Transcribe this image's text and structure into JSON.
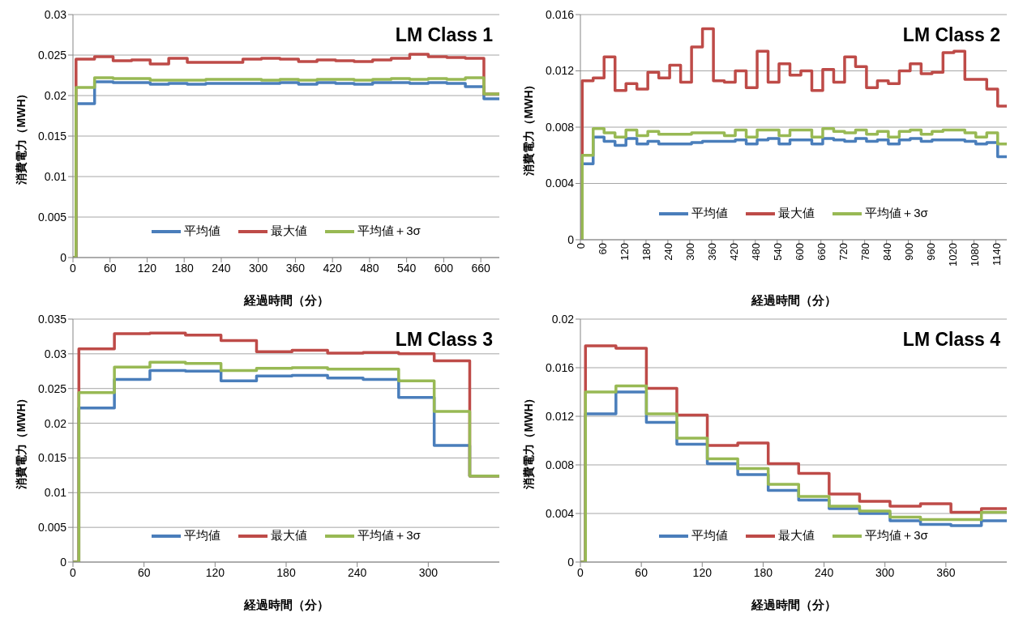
{
  "chart_data": [
    {
      "type": "step",
      "title": "LM Class 1",
      "xlabel": "経過時間（分）",
      "ylabel": "消費電力（MWH）",
      "grid": "y",
      "legend": "bottom",
      "marker": "none",
      "line_style": "solid",
      "x": [
        0,
        5,
        35,
        65,
        95,
        125,
        155,
        185,
        215,
        245,
        275,
        305,
        335,
        365,
        395,
        425,
        455,
        485,
        515,
        545,
        575,
        605,
        635,
        665,
        690
      ],
      "xlim": [
        0,
        690
      ],
      "xticks": [
        0,
        60,
        120,
        180,
        240,
        300,
        360,
        420,
        480,
        540,
        600,
        660
      ],
      "ylim": [
        0,
        0.03
      ],
      "yticks": [
        0,
        0.005,
        0.01,
        0.015,
        0.02,
        0.025,
        0.03
      ],
      "series": [
        {
          "name": "平均値",
          "color": "#4a7ebb",
          "values": [
            0,
            0.019,
            0.0217,
            0.0216,
            0.0216,
            0.0214,
            0.0215,
            0.0214,
            0.0215,
            0.0215,
            0.0215,
            0.0215,
            0.0216,
            0.0214,
            0.0216,
            0.0215,
            0.0214,
            0.0216,
            0.0216,
            0.0215,
            0.0216,
            0.0215,
            0.0211,
            0.0196,
            0.0196
          ]
        },
        {
          "name": "最大値",
          "color": "#be4b48",
          "values": [
            0,
            0.0245,
            0.0248,
            0.0243,
            0.0244,
            0.0239,
            0.0246,
            0.0241,
            0.0241,
            0.0241,
            0.0245,
            0.0246,
            0.0245,
            0.0242,
            0.0244,
            0.0243,
            0.0242,
            0.0244,
            0.0246,
            0.0251,
            0.0248,
            0.0247,
            0.0246,
            0.0202,
            0.0202
          ]
        },
        {
          "name": "平均値＋3σ",
          "color": "#98b954",
          "values": [
            0,
            0.021,
            0.0222,
            0.0221,
            0.0221,
            0.0219,
            0.0219,
            0.0219,
            0.022,
            0.022,
            0.022,
            0.0219,
            0.022,
            0.0219,
            0.022,
            0.022,
            0.0219,
            0.022,
            0.0221,
            0.022,
            0.0221,
            0.022,
            0.0222,
            0.0202,
            0.0202
          ]
        }
      ]
    },
    {
      "type": "step",
      "title": "LM Class 2",
      "xlabel": "経過時間（分）",
      "ylabel": "消費電力（MWH）",
      "grid": "y",
      "legend": "bottom",
      "marker": "none",
      "line_style": "solid",
      "x": [
        0,
        5,
        35,
        65,
        95,
        125,
        155,
        185,
        215,
        245,
        275,
        305,
        335,
        365,
        395,
        425,
        455,
        485,
        515,
        545,
        575,
        605,
        635,
        665,
        695,
        725,
        755,
        785,
        815,
        845,
        875,
        905,
        935,
        965,
        995,
        1025,
        1055,
        1085,
        1115,
        1145,
        1170
      ],
      "xlim": [
        0,
        1170
      ],
      "xticks": [
        0,
        60,
        120,
        180,
        240,
        300,
        360,
        420,
        480,
        540,
        600,
        660,
        720,
        780,
        840,
        900,
        960,
        1020,
        1080,
        1140
      ],
      "ylim": [
        0,
        0.016
      ],
      "yticks": [
        0,
        0.004,
        0.008,
        0.012,
        0.016
      ],
      "series": [
        {
          "name": "平均値",
          "color": "#4a7ebb",
          "values": [
            0,
            0.0054,
            0.0073,
            0.007,
            0.0067,
            0.0072,
            0.0068,
            0.007,
            0.0068,
            0.0068,
            0.0068,
            0.0069,
            0.007,
            0.007,
            0.007,
            0.0071,
            0.0068,
            0.0071,
            0.0072,
            0.0068,
            0.0071,
            0.0071,
            0.0068,
            0.0072,
            0.0071,
            0.007,
            0.0072,
            0.007,
            0.0071,
            0.0068,
            0.0071,
            0.0072,
            0.007,
            0.0071,
            0.0071,
            0.0071,
            0.007,
            0.0068,
            0.0069,
            0.0059,
            0.0059
          ]
        },
        {
          "name": "最大値",
          "color": "#be4b48",
          "values": [
            0,
            0.0113,
            0.0115,
            0.013,
            0.0106,
            0.0111,
            0.0107,
            0.0119,
            0.0115,
            0.0124,
            0.0112,
            0.0137,
            0.015,
            0.0113,
            0.0112,
            0.012,
            0.0108,
            0.0134,
            0.0112,
            0.0125,
            0.0117,
            0.012,
            0.0106,
            0.0121,
            0.0112,
            0.013,
            0.0123,
            0.0108,
            0.0113,
            0.0111,
            0.012,
            0.0125,
            0.0118,
            0.0119,
            0.0133,
            0.0134,
            0.0114,
            0.0114,
            0.0107,
            0.0095,
            0.0095
          ]
        },
        {
          "name": "平均値＋3σ",
          "color": "#98b954",
          "values": [
            0,
            0.006,
            0.0079,
            0.0076,
            0.0073,
            0.0078,
            0.0074,
            0.0077,
            0.0075,
            0.0075,
            0.0075,
            0.0076,
            0.0076,
            0.0076,
            0.0074,
            0.0078,
            0.0073,
            0.0078,
            0.0078,
            0.0074,
            0.0078,
            0.0078,
            0.0073,
            0.0079,
            0.0077,
            0.0076,
            0.0078,
            0.0075,
            0.0077,
            0.0073,
            0.0077,
            0.0078,
            0.0075,
            0.0077,
            0.0078,
            0.0078,
            0.0076,
            0.0073,
            0.0076,
            0.0068,
            0.0068
          ]
        }
      ]
    },
    {
      "type": "step",
      "title": "LM Class 3",
      "xlabel": "経過時間（分）",
      "ylabel": "消費電力（MWH）",
      "grid": "y",
      "legend": "bottom",
      "marker": "none",
      "line_style": "solid",
      "x": [
        0,
        5,
        35,
        65,
        95,
        125,
        155,
        185,
        215,
        245,
        275,
        305,
        335,
        360
      ],
      "xlim": [
        0,
        360
      ],
      "xticks": [
        0,
        60,
        120,
        180,
        240,
        300
      ],
      "ylim": [
        0,
        0.035
      ],
      "yticks": [
        0,
        0.005,
        0.01,
        0.015,
        0.02,
        0.025,
        0.03,
        0.035
      ],
      "series": [
        {
          "name": "平均値",
          "color": "#4a7ebb",
          "values": [
            0,
            0.0222,
            0.0263,
            0.0276,
            0.0275,
            0.0261,
            0.0268,
            0.0269,
            0.0265,
            0.0263,
            0.0237,
            0.0168,
            0.0124,
            0.0124
          ]
        },
        {
          "name": "最大値",
          "color": "#be4b48",
          "values": [
            0,
            0.0307,
            0.0329,
            0.033,
            0.0327,
            0.0319,
            0.0303,
            0.0305,
            0.0301,
            0.0302,
            0.03,
            0.029,
            0.0124,
            0.0124
          ]
        },
        {
          "name": "平均値＋3σ",
          "color": "#98b954",
          "values": [
            0,
            0.0244,
            0.0281,
            0.0288,
            0.0286,
            0.0276,
            0.0279,
            0.028,
            0.0278,
            0.0278,
            0.0261,
            0.0217,
            0.0124,
            0.0124
          ]
        }
      ]
    },
    {
      "type": "step",
      "title": "LM Class 4",
      "xlabel": "経過時間（分）",
      "ylabel": "消費電力（MWH）",
      "grid": "y",
      "legend": "bottom",
      "marker": "none",
      "line_style": "solid",
      "x": [
        0,
        5,
        35,
        65,
        95,
        125,
        155,
        185,
        215,
        245,
        275,
        305,
        335,
        365,
        395,
        420
      ],
      "xlim": [
        0,
        420
      ],
      "xticks": [
        0,
        60,
        120,
        180,
        240,
        300,
        360
      ],
      "ylim": [
        0,
        0.02
      ],
      "yticks": [
        0,
        0.004,
        0.008,
        0.012,
        0.016,
        0.02
      ],
      "series": [
        {
          "name": "平均値",
          "color": "#4a7ebb",
          "values": [
            0,
            0.0122,
            0.014,
            0.0115,
            0.0097,
            0.0081,
            0.0072,
            0.0059,
            0.0051,
            0.0044,
            0.004,
            0.0034,
            0.0031,
            0.003,
            0.0034,
            0.0034
          ]
        },
        {
          "name": "最大値",
          "color": "#be4b48",
          "values": [
            0,
            0.0178,
            0.0176,
            0.0143,
            0.0121,
            0.0096,
            0.0098,
            0.0081,
            0.0073,
            0.0056,
            0.005,
            0.0046,
            0.0048,
            0.0041,
            0.0044,
            0.0044
          ]
        },
        {
          "name": "平均値＋3σ",
          "color": "#98b954",
          "values": [
            0,
            0.014,
            0.0145,
            0.0122,
            0.0102,
            0.0085,
            0.0077,
            0.0064,
            0.0054,
            0.0046,
            0.0042,
            0.0037,
            0.0035,
            0.0035,
            0.0041,
            0.0041
          ]
        }
      ]
    }
  ]
}
